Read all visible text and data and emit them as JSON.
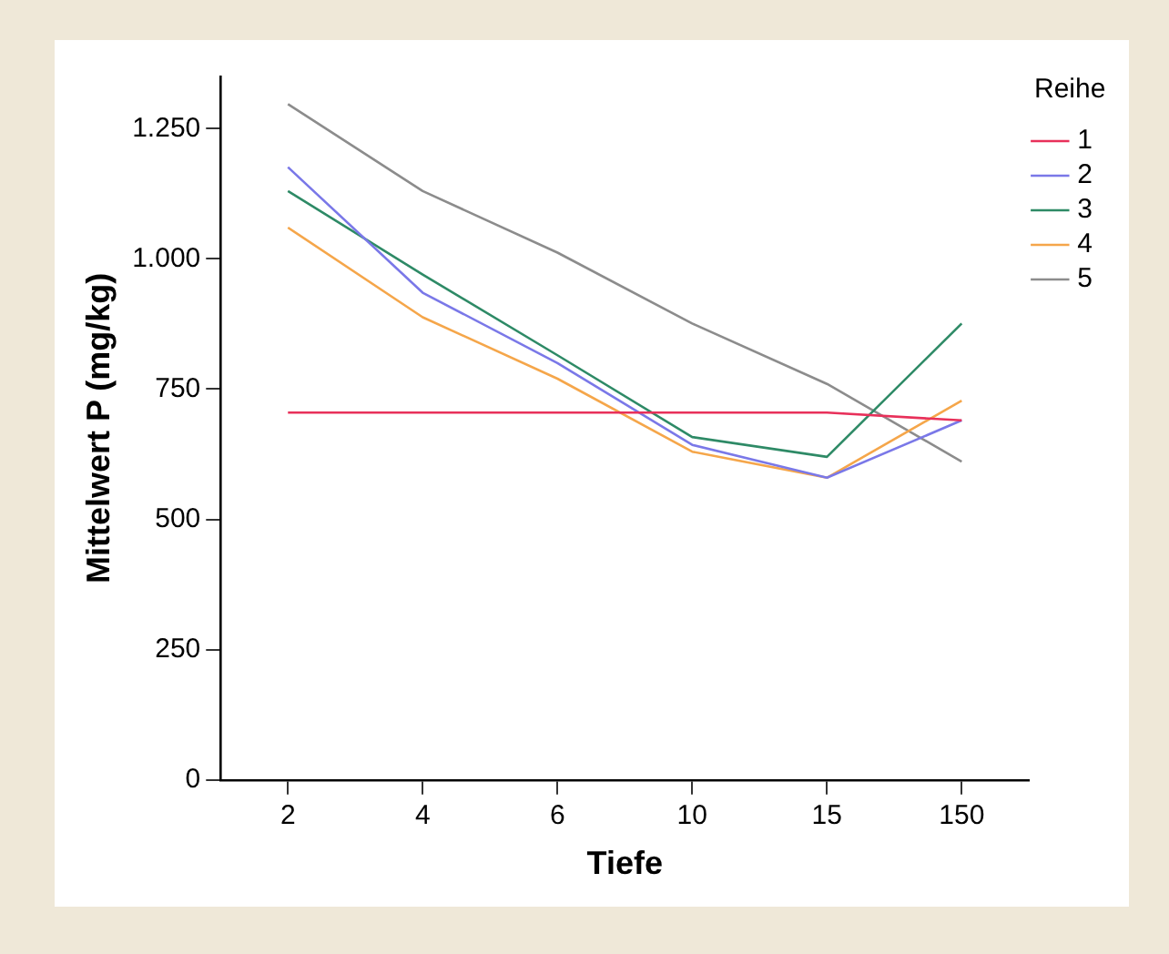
{
  "chart_data": {
    "type": "line",
    "xlabel": "Tiefe",
    "ylabel": "Mittelwert P (mg/kg)",
    "legend_title": "Reihe",
    "categories": [
      "2",
      "4",
      "6",
      "10",
      "15",
      "150"
    ],
    "series": [
      {
        "name": "1",
        "color": "#e8305a",
        "values": [
          705,
          705,
          705,
          705,
          705,
          690
        ]
      },
      {
        "name": "2",
        "color": "#7a78e8",
        "values": [
          1176,
          935,
          800,
          643,
          580,
          690
        ]
      },
      {
        "name": "3",
        "color": "#2e8a66",
        "values": [
          1130,
          970,
          815,
          658,
          620,
          876
        ]
      },
      {
        "name": "4",
        "color": "#f5a64a",
        "values": [
          1060,
          888,
          770,
          630,
          580,
          728
        ]
      },
      {
        "name": "5",
        "color": "#8c8c8c",
        "values": [
          1297,
          1130,
          1012,
          876,
          760,
          611
        ]
      }
    ],
    "ylim": [
      0,
      1350
    ],
    "yticks": [
      0,
      250,
      500,
      750,
      {
        "value": 1000,
        "label": "1.000"
      },
      {
        "value": 1250,
        "label": "1.250"
      }
    ],
    "grid": false,
    "legend": "top right",
    "marker": "none",
    "line_style": "solid"
  }
}
